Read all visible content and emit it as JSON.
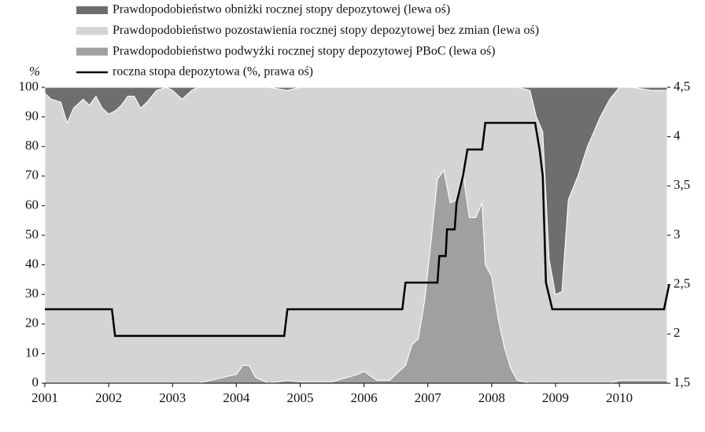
{
  "chart_data": {
    "type": "stacked-area-line",
    "y_label": "%",
    "x": [
      2001.0,
      2001.1,
      2001.25,
      2001.35,
      2001.45,
      2001.6,
      2001.7,
      2001.8,
      2001.9,
      2002.0,
      2002.1,
      2002.2,
      2002.3,
      2002.4,
      2002.5,
      2002.6,
      2002.75,
      2002.9,
      2003.0,
      2003.15,
      2003.3,
      2003.4,
      2004.0,
      2004.1,
      2004.2,
      2004.3,
      2004.5,
      2004.8,
      2005.0,
      2005.5,
      2005.9,
      2006.0,
      2006.2,
      2006.4,
      2006.5,
      2006.65,
      2006.75,
      2006.85,
      2006.95,
      2007.05,
      2007.15,
      2007.25,
      2007.35,
      2007.45,
      2007.55,
      2007.65,
      2007.75,
      2007.85,
      2007.9,
      2008.0,
      2008.1,
      2008.2,
      2008.3,
      2008.4,
      2008.6,
      2008.7,
      2008.8,
      2008.9,
      2009.0,
      2009.1,
      2009.2,
      2009.35,
      2009.5,
      2009.7,
      2009.85,
      2010.0,
      2010.2,
      2010.5,
      2010.75
    ],
    "series": [
      {
        "name": "Prawdopodobieństwo obniżki rocznej stopy depozytowej (lewa oś)",
        "color": "#6d6e70",
        "values": [
          2,
          4,
          5,
          12,
          7,
          4,
          6,
          3,
          7,
          9,
          8,
          6,
          3,
          3,
          7,
          5,
          1,
          0,
          1,
          4,
          1,
          0,
          0,
          0,
          0,
          0,
          0,
          1,
          0,
          0,
          0,
          0,
          0,
          0,
          0,
          0,
          0,
          0,
          0,
          0,
          0,
          0,
          0,
          0,
          0,
          0,
          0,
          0,
          0,
          0,
          0,
          0,
          0,
          0,
          1,
          10,
          15,
          58,
          70,
          69,
          38,
          30,
          20,
          10,
          4,
          0,
          0,
          1,
          1
        ]
      },
      {
        "name": "Prawdopodobieństwo pozostawienia rocznej stopy depozytowej bez zmian (lewa oś)",
        "color": "#d4d4d5",
        "values": [
          98,
          96,
          95,
          88,
          93,
          96,
          94,
          97,
          93,
          91,
          92,
          94,
          97,
          97,
          93,
          95,
          99,
          100,
          99,
          96,
          99,
          100,
          97,
          94,
          94,
          98,
          100,
          98,
          99.5,
          99.5,
          97,
          96,
          99,
          99,
          97,
          94,
          87,
          85,
          72,
          52,
          31,
          28,
          39,
          38,
          29,
          44,
          44,
          39,
          60,
          64,
          78,
          88,
          95,
          99,
          99,
          90,
          85,
          42,
          30,
          31,
          62,
          70,
          80,
          90,
          96,
          99,
          99,
          98,
          98
        ]
      },
      {
        "name": "Prawdopodobieństwo podwyżki rocznej stopy depozytowej PBoC (lewa oś)",
        "color": "#a0a0a2",
        "values": [
          0,
          0,
          0,
          0,
          0,
          0,
          0,
          0,
          0,
          0,
          0,
          0,
          0,
          0,
          0,
          0,
          0,
          0,
          0,
          0,
          0,
          0,
          3,
          6,
          6,
          2,
          0,
          1,
          0.5,
          0.5,
          3,
          4,
          1,
          1,
          3,
          6,
          13,
          15,
          28,
          48,
          69,
          72,
          61,
          62,
          71,
          56,
          56,
          61,
          40,
          36,
          22,
          12,
          5,
          1,
          0,
          0,
          0,
          0,
          0,
          0,
          0,
          0,
          0,
          0,
          0,
          1,
          1,
          1,
          1
        ]
      },
      {
        "name": "roczna stopa depozytowa (%, prawa oś)",
        "color": "#000000",
        "axis": "y2",
        "x": [
          2001,
          2002.05,
          2002.1,
          2004.75,
          2004.8,
          2006.6,
          2006.65,
          2007.15,
          2007.18,
          2007.28,
          2007.3,
          2007.42,
          2007.45,
          2007.55,
          2007.62,
          2007.85,
          2007.9,
          2008.68,
          2008.75,
          2008.8,
          2008.85,
          2008.95,
          2010.7,
          2010.78
        ],
        "values": [
          2.25,
          2.25,
          1.98,
          1.98,
          2.25,
          2.25,
          2.52,
          2.52,
          2.79,
          2.79,
          3.06,
          3.06,
          3.33,
          3.6,
          3.87,
          3.87,
          4.14,
          4.14,
          3.87,
          3.6,
          2.52,
          2.25,
          2.25,
          2.5
        ]
      }
    ],
    "xlim": [
      2001,
      2010.75
    ],
    "xticks": [
      2001,
      2002,
      2003,
      2004,
      2005,
      2006,
      2007,
      2008,
      2009,
      2010
    ],
    "ylim": [
      0,
      100
    ],
    "yticks": [
      0,
      10,
      20,
      30,
      40,
      50,
      60,
      70,
      80,
      90,
      100
    ],
    "y2lim": [
      1.5,
      4.5
    ],
    "y2ticks": [
      {
        "value": 1.5,
        "label": "1,5"
      },
      2,
      {
        "value": 2.5,
        "label": "2,5"
      },
      3,
      {
        "value": 3.5,
        "label": "3,5"
      },
      4,
      {
        "value": 4.5,
        "label": "4,5"
      }
    ]
  }
}
